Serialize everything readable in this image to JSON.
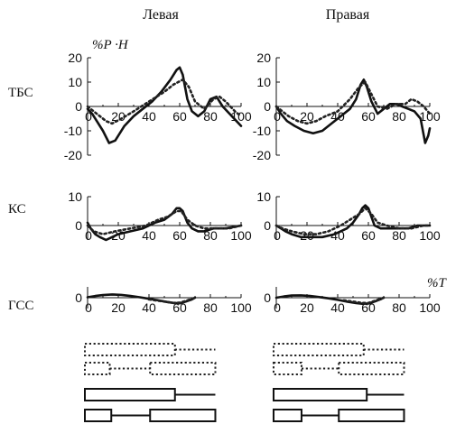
{
  "columns": [
    "Левая",
    "Правая"
  ],
  "rows": [
    "ТБС",
    "КС",
    "ГСС"
  ],
  "units": {
    "moment": "%P ·H",
    "time": "%T"
  },
  "line_styles": {
    "solid": "#111111",
    "dotted": "#222222"
  },
  "chart_data": [
    {
      "type": "line",
      "row": "ТБС",
      "column": "Левая",
      "xlim": [
        0,
        100
      ],
      "ylim": [
        -20,
        20
      ],
      "xticks": [
        "20",
        "40",
        "60",
        "80",
        "100"
      ],
      "yticks": [
        "20",
        "10",
        "0",
        "-10",
        "-20"
      ],
      "series": [
        {
          "style": "solid",
          "points": [
            [
              0,
              -1
            ],
            [
              3,
              -3
            ],
            [
              6,
              -6
            ],
            [
              10,
              -10
            ],
            [
              14,
              -15
            ],
            [
              18,
              -14
            ],
            [
              24,
              -8
            ],
            [
              30,
              -4
            ],
            [
              36,
              -1
            ],
            [
              42,
              2
            ],
            [
              48,
              6
            ],
            [
              54,
              11
            ],
            [
              58,
              15
            ],
            [
              60,
              16
            ],
            [
              62,
              13
            ],
            [
              65,
              3
            ],
            [
              68,
              -2
            ],
            [
              72,
              -4
            ],
            [
              76,
              -2
            ],
            [
              80,
              3
            ],
            [
              84,
              4
            ],
            [
              88,
              0
            ],
            [
              94,
              -4
            ],
            [
              100,
              -8
            ]
          ]
        },
        {
          "style": "dotted",
          "points": [
            [
              0,
              0
            ],
            [
              4,
              -2
            ],
            [
              8,
              -4
            ],
            [
              12,
              -6
            ],
            [
              16,
              -7
            ],
            [
              22,
              -5
            ],
            [
              30,
              -2
            ],
            [
              40,
              2
            ],
            [
              50,
              6
            ],
            [
              56,
              9
            ],
            [
              62,
              11
            ],
            [
              66,
              8
            ],
            [
              70,
              2
            ],
            [
              76,
              -1
            ],
            [
              82,
              3
            ],
            [
              86,
              4
            ],
            [
              90,
              2
            ],
            [
              96,
              -2
            ],
            [
              100,
              -4
            ]
          ]
        }
      ]
    },
    {
      "type": "line",
      "row": "ТБС",
      "column": "Правая",
      "xlim": [
        0,
        100
      ],
      "ylim": [
        -20,
        20
      ],
      "xticks": [
        "20",
        "40",
        "60",
        "80",
        "100"
      ],
      "yticks": [
        "20",
        "10",
        "0",
        "-10",
        "-20"
      ],
      "series": [
        {
          "style": "solid",
          "points": [
            [
              0,
              0
            ],
            [
              3,
              -3
            ],
            [
              7,
              -6
            ],
            [
              12,
              -8
            ],
            [
              18,
              -10
            ],
            [
              24,
              -11
            ],
            [
              30,
              -10
            ],
            [
              36,
              -7
            ],
            [
              42,
              -4
            ],
            [
              48,
              -1
            ],
            [
              52,
              3
            ],
            [
              55,
              9
            ],
            [
              57,
              11
            ],
            [
              59,
              8
            ],
            [
              62,
              2
            ],
            [
              66,
              -3
            ],
            [
              70,
              -1
            ],
            [
              74,
              1
            ],
            [
              78,
              1
            ],
            [
              82,
              0
            ],
            [
              86,
              -1
            ],
            [
              90,
              -2
            ],
            [
              94,
              -5
            ],
            [
              97,
              -15
            ],
            [
              99,
              -12
            ],
            [
              100,
              -9
            ]
          ]
        },
        {
          "style": "dotted",
          "points": [
            [
              0,
              0
            ],
            [
              4,
              -2
            ],
            [
              8,
              -4
            ],
            [
              14,
              -6
            ],
            [
              20,
              -7
            ],
            [
              26,
              -6
            ],
            [
              32,
              -4
            ],
            [
              40,
              -2
            ],
            [
              48,
              3
            ],
            [
              54,
              8
            ],
            [
              58,
              10
            ],
            [
              62,
              5
            ],
            [
              66,
              0
            ],
            [
              72,
              -1
            ],
            [
              78,
              1
            ],
            [
              84,
              1
            ],
            [
              88,
              3
            ],
            [
              92,
              2
            ],
            [
              96,
              0
            ],
            [
              100,
              -3
            ]
          ]
        }
      ]
    },
    {
      "type": "line",
      "row": "КС",
      "column": "Левая",
      "xlim": [
        0,
        100
      ],
      "ylim": [
        -5,
        10
      ],
      "xticks": [
        "20",
        "40",
        "60",
        "80",
        "100"
      ],
      "yticks": [
        "10",
        "0"
      ],
      "series": [
        {
          "style": "solid",
          "points": [
            [
              0,
              1
            ],
            [
              2,
              -1
            ],
            [
              5,
              -3
            ],
            [
              8,
              -4
            ],
            [
              12,
              -5
            ],
            [
              16,
              -4
            ],
            [
              20,
              -3
            ],
            [
              28,
              -2
            ],
            [
              36,
              -1
            ],
            [
              44,
              1
            ],
            [
              50,
              2
            ],
            [
              55,
              4
            ],
            [
              58,
              6
            ],
            [
              60,
              6
            ],
            [
              62,
              5
            ],
            [
              65,
              1
            ],
            [
              68,
              -1
            ],
            [
              72,
              -2
            ],
            [
              76,
              -2
            ],
            [
              82,
              -1
            ],
            [
              90,
              -1
            ],
            [
              100,
              0
            ]
          ]
        },
        {
          "style": "dotted",
          "points": [
            [
              0,
              0
            ],
            [
              4,
              -2
            ],
            [
              10,
              -3
            ],
            [
              18,
              -2
            ],
            [
              28,
              -1
            ],
            [
              38,
              0
            ],
            [
              46,
              2
            ],
            [
              52,
              3
            ],
            [
              58,
              5
            ],
            [
              61,
              5
            ],
            [
              65,
              2
            ],
            [
              70,
              0
            ],
            [
              76,
              -1
            ],
            [
              84,
              -1
            ],
            [
              92,
              -1
            ],
            [
              100,
              0
            ]
          ]
        }
      ]
    },
    {
      "type": "line",
      "row": "КС",
      "column": "Правая",
      "xlim": [
        0,
        100
      ],
      "ylim": [
        -5,
        10
      ],
      "xticks": [
        "20",
        "40",
        "60",
        "80",
        "100"
      ],
      "yticks": [
        "10",
        "0"
      ],
      "series": [
        {
          "style": "solid",
          "points": [
            [
              0,
              0
            ],
            [
              3,
              -1
            ],
            [
              6,
              -2
            ],
            [
              10,
              -3
            ],
            [
              16,
              -4
            ],
            [
              22,
              -4
            ],
            [
              30,
              -4
            ],
            [
              38,
              -3
            ],
            [
              46,
              -1
            ],
            [
              50,
              1
            ],
            [
              54,
              4
            ],
            [
              56,
              6
            ],
            [
              58,
              7
            ],
            [
              60,
              6
            ],
            [
              62,
              3
            ],
            [
              64,
              0
            ],
            [
              68,
              -1
            ],
            [
              74,
              -1
            ],
            [
              80,
              -1
            ],
            [
              86,
              -1
            ],
            [
              92,
              0
            ],
            [
              100,
              0
            ]
          ]
        },
        {
          "style": "dotted",
          "points": [
            [
              0,
              0
            ],
            [
              4,
              -1
            ],
            [
              10,
              -2
            ],
            [
              18,
              -3
            ],
            [
              26,
              -3
            ],
            [
              34,
              -2
            ],
            [
              42,
              0
            ],
            [
              48,
              2
            ],
            [
              54,
              4
            ],
            [
              58,
              6
            ],
            [
              62,
              4
            ],
            [
              66,
              1
            ],
            [
              72,
              0
            ],
            [
              80,
              -1
            ],
            [
              88,
              -1
            ],
            [
              96,
              0
            ],
            [
              100,
              0
            ]
          ]
        }
      ]
    },
    {
      "type": "line",
      "row": "ГСС",
      "column": "Левая",
      "xlim": [
        0,
        100
      ],
      "ylim": [
        -5,
        5
      ],
      "xticks": [
        "20",
        "40",
        "60",
        "80",
        "100"
      ],
      "yticks": [
        "0"
      ],
      "series": [
        {
          "style": "solid",
          "points": [
            [
              0,
              0.2
            ],
            [
              5,
              0.8
            ],
            [
              10,
              1.2
            ],
            [
              16,
              1.5
            ],
            [
              22,
              1.3
            ],
            [
              28,
              0.8
            ],
            [
              34,
              0.2
            ],
            [
              40,
              -0.5
            ],
            [
              46,
              -1.2
            ],
            [
              52,
              -2
            ],
            [
              56,
              -2.4
            ],
            [
              60,
              -2.6
            ],
            [
              64,
              -1.8
            ],
            [
              68,
              -0.8
            ],
            [
              70,
              0
            ]
          ]
        },
        {
          "style": "dotted",
          "points": [
            [
              40,
              -0.8
            ],
            [
              46,
              -1.4
            ],
            [
              52,
              -2
            ],
            [
              56,
              -2.4
            ],
            [
              60,
              -2.3
            ],
            [
              64,
              -1.5
            ],
            [
              68,
              -0.5
            ],
            [
              70,
              0
            ]
          ]
        }
      ]
    },
    {
      "type": "line",
      "row": "ГСС",
      "column": "Правая",
      "xlim": [
        0,
        100
      ],
      "ylim": [
        -5,
        5
      ],
      "xticks": [
        "20",
        "40",
        "60",
        "80",
        "100"
      ],
      "yticks": [
        "0"
      ],
      "series": [
        {
          "style": "solid",
          "points": [
            [
              0,
              0
            ],
            [
              5,
              0.6
            ],
            [
              10,
              1
            ],
            [
              16,
              1.1
            ],
            [
              22,
              0.8
            ],
            [
              28,
              0.3
            ],
            [
              34,
              -0.3
            ],
            [
              40,
              -1
            ],
            [
              46,
              -1.8
            ],
            [
              52,
              -2.5
            ],
            [
              56,
              -2.8
            ],
            [
              60,
              -2.7
            ],
            [
              64,
              -1.8
            ],
            [
              68,
              -0.7
            ],
            [
              70,
              0
            ]
          ]
        },
        {
          "style": "dotted",
          "points": [
            [
              44,
              -1.2
            ],
            [
              50,
              -1.8
            ],
            [
              56,
              -2.4
            ],
            [
              60,
              -2.4
            ],
            [
              64,
              -1.5
            ],
            [
              68,
              -0.5
            ],
            [
              70,
              0
            ]
          ]
        }
      ]
    }
  ],
  "phase_bars": [
    {
      "column": "Левая",
      "style": "dotted",
      "row": 1,
      "boxes": [
        [
          0,
          58
        ]
      ],
      "lines": [
        [
          58,
          84
        ]
      ]
    },
    {
      "column": "Левая",
      "style": "dotted",
      "row": 2,
      "boxes": [
        [
          0,
          16
        ],
        [
          42,
          84
        ]
      ],
      "lines": [
        [
          16,
          42
        ]
      ]
    },
    {
      "column": "Левая",
      "style": "solid",
      "row": 3,
      "boxes": [
        [
          0,
          58
        ]
      ],
      "lines": [
        [
          58,
          84
        ]
      ]
    },
    {
      "column": "Левая",
      "style": "solid",
      "row": 4,
      "boxes": [
        [
          0,
          17
        ],
        [
          42,
          84
        ]
      ],
      "lines": [
        [
          17,
          42
        ]
      ]
    },
    {
      "column": "Правая",
      "style": "dotted",
      "row": 1,
      "boxes": [
        [
          0,
          58
        ]
      ],
      "lines": [
        [
          58,
          84
        ]
      ]
    },
    {
      "column": "Правая",
      "style": "dotted",
      "row": 2,
      "boxes": [
        [
          0,
          18
        ],
        [
          42,
          84
        ]
      ],
      "lines": [
        [
          18,
          42
        ]
      ]
    },
    {
      "column": "Правая",
      "style": "solid",
      "row": 3,
      "boxes": [
        [
          0,
          60
        ]
      ],
      "lines": [
        [
          60,
          84
        ]
      ]
    },
    {
      "column": "Правая",
      "style": "solid",
      "row": 4,
      "boxes": [
        [
          0,
          18
        ],
        [
          42,
          84
        ]
      ],
      "lines": [
        [
          18,
          42
        ]
      ]
    }
  ]
}
